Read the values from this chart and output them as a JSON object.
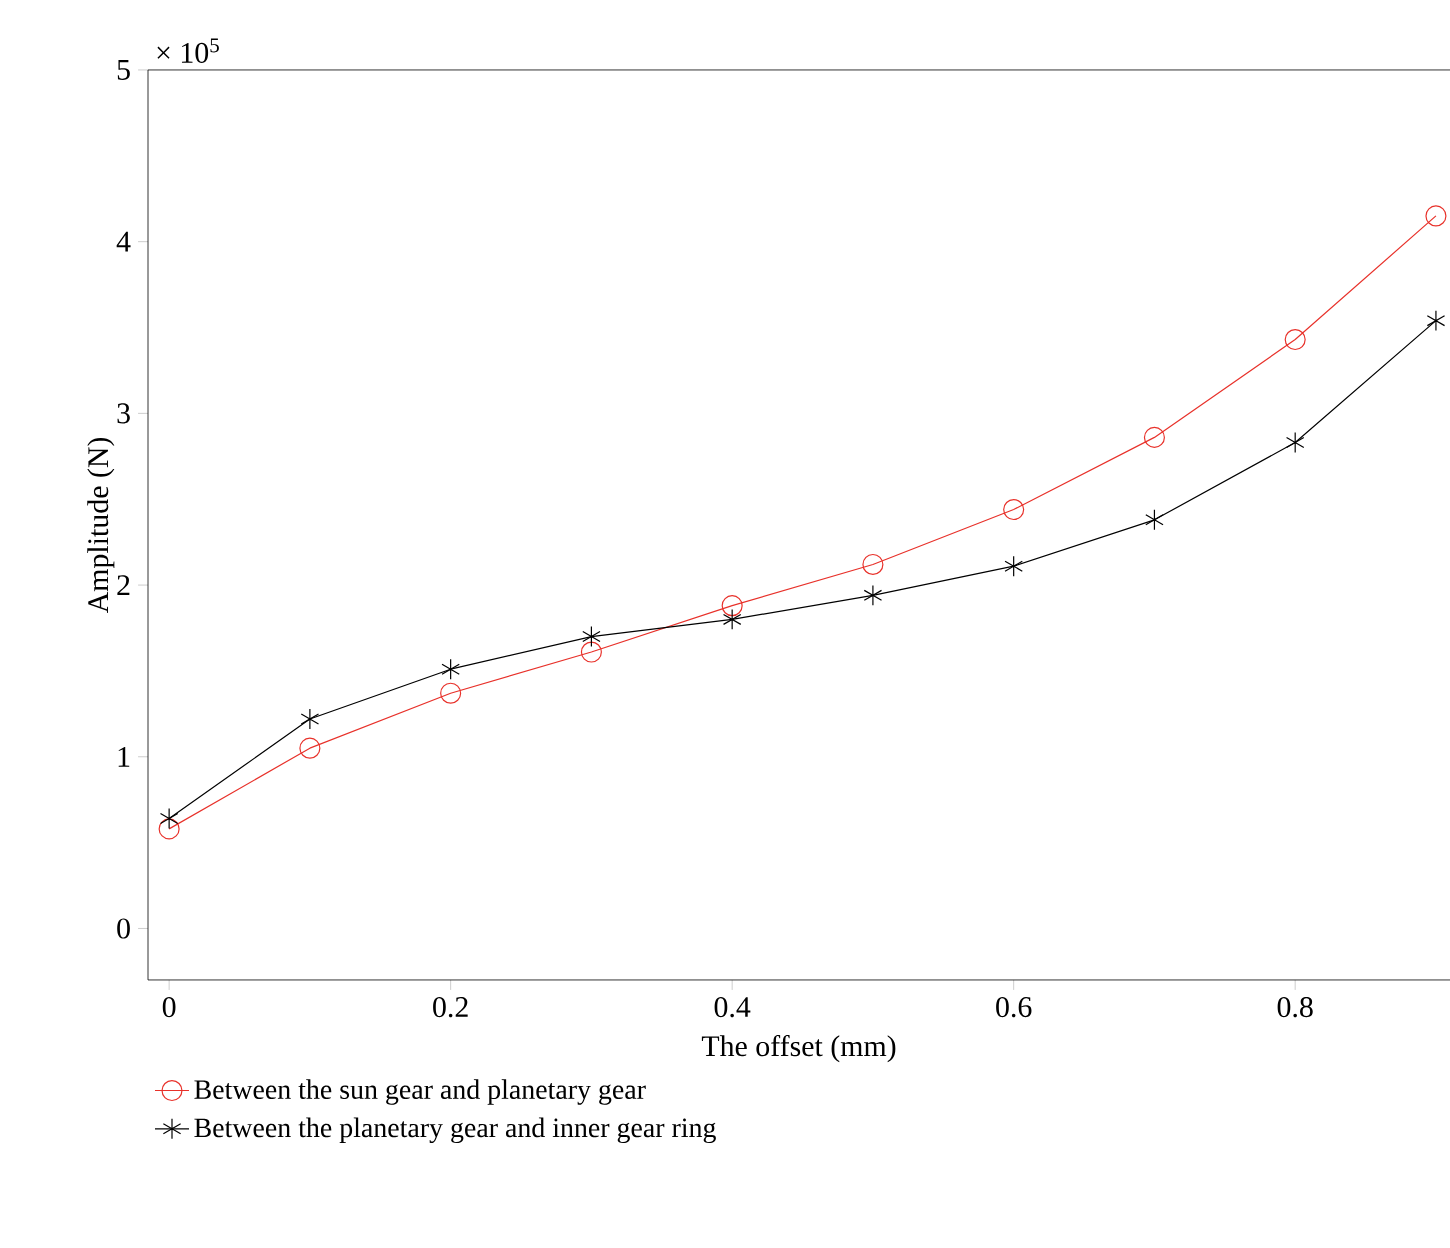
{
  "chart_data": {
    "type": "line",
    "xlabel": "The offset (mm)",
    "ylabel": "Amplitude (N)",
    "annotations": [
      "× 10$^{5}$"
    ],
    "x": [
      0,
      0.1,
      0.2,
      0.3,
      0.4,
      0.5,
      0.6,
      0.7,
      0.8,
      0.9
    ],
    "series": [
      {
        "name": "Between the sun gear and planetary gear",
        "color": "#e8312a",
        "marker": "circle",
        "values": [
          0.58,
          1.05,
          1.37,
          1.61,
          1.88,
          2.12,
          2.44,
          2.86,
          3.43,
          4.15
        ]
      },
      {
        "name": "Between the planetary gear and inner gear ring",
        "color": "#000000",
        "marker": "cross",
        "values": [
          0.64,
          1.22,
          1.51,
          1.7,
          1.8,
          1.94,
          2.11,
          2.38,
          2.83,
          3.54
        ]
      }
    ],
    "xlim": [
      -0.015,
      0.91
    ],
    "ylim": [
      -0.3,
      5
    ],
    "xticks": [
      0,
      0.2,
      0.4,
      0.6,
      0.8
    ],
    "yticks": [
      0,
      1,
      2,
      3,
      4,
      5
    ],
    "grid": false,
    "legend": "bottom",
    "line_style": "solid"
  }
}
